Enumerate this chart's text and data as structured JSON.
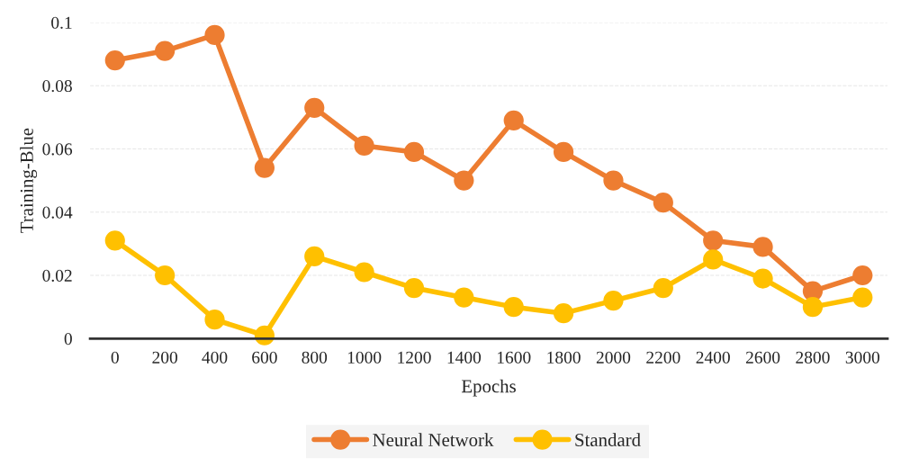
{
  "chart_data": {
    "type": "line",
    "xlabel": "Epochs",
    "ylabel": "Training-Blue",
    "categories": [
      "0",
      "200",
      "400",
      "600",
      "800",
      "1000",
      "1200",
      "1400",
      "1600",
      "1800",
      "2000",
      "2200",
      "2400",
      "2600",
      "2800",
      "3000"
    ],
    "series": [
      {
        "name": "Neural Network",
        "color": "#ed7d31",
        "values": [
          0.088,
          0.091,
          0.096,
          0.054,
          0.073,
          0.061,
          0.059,
          0.05,
          0.069,
          0.059,
          0.05,
          0.043,
          0.031,
          0.029,
          0.015,
          0.02
        ]
      },
      {
        "name": "Standard",
        "color": "#ffc000",
        "values": [
          0.031,
          0.02,
          0.006,
          0.001,
          0.026,
          0.021,
          0.016,
          0.013,
          0.01,
          0.008,
          0.012,
          0.016,
          0.025,
          0.019,
          0.01,
          0.013
        ]
      }
    ],
    "ylim": [
      0,
      0.1
    ],
    "yticks": [
      0,
      0.02,
      0.04,
      0.06,
      0.08,
      0.1
    ],
    "grid": "y",
    "legend": "bottom",
    "marker": "circle",
    "line_style": "solid"
  }
}
